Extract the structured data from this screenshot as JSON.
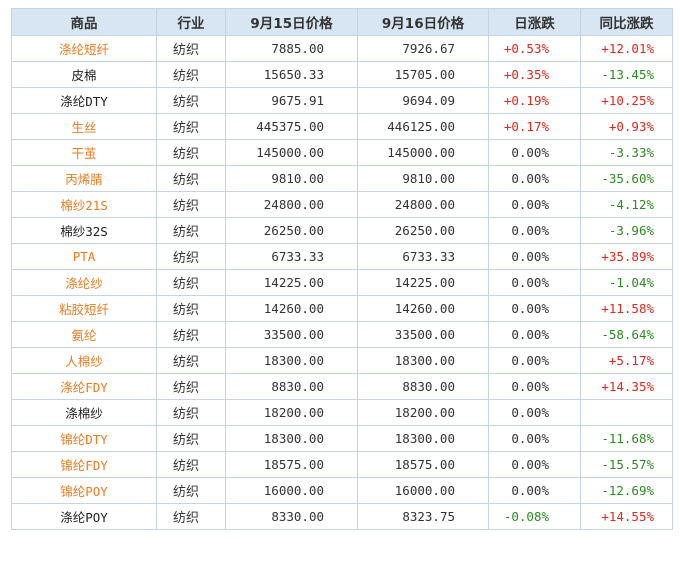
{
  "header": {
    "product": "商品",
    "industry": "行业",
    "price_sep15": "9月15日价格",
    "price_sep16": "9月16日价格",
    "daily_change": "日涨跌",
    "yoy_change": "同比涨跌"
  },
  "colors": {
    "header_bg": "#d8e6f3",
    "link_orange": "#ee7b22",
    "rise_red": "#e0281e",
    "fall_green": "#2d8a22"
  },
  "rows": [
    {
      "name": "涤纶短纤",
      "name_color": "orange",
      "industry": "纺织",
      "p15": "7885.00",
      "p16": "7926.67",
      "day": "+0.53%",
      "yoy": "+12.01%"
    },
    {
      "name": "皮棉",
      "name_color": "black",
      "industry": "纺织",
      "p15": "15650.33",
      "p16": "15705.00",
      "day": "+0.35%",
      "yoy": "-13.45%"
    },
    {
      "name": "涤纶DTY",
      "name_color": "black",
      "industry": "纺织",
      "p15": "9675.91",
      "p16": "9694.09",
      "day": "+0.19%",
      "yoy": "+10.25%"
    },
    {
      "name": "生丝",
      "name_color": "orange",
      "industry": "纺织",
      "p15": "445375.00",
      "p16": "446125.00",
      "day": "+0.17%",
      "yoy": "+0.93%"
    },
    {
      "name": "干茧",
      "name_color": "orange",
      "industry": "纺织",
      "p15": "145000.00",
      "p16": "145000.00",
      "day": "0.00%",
      "yoy": "-3.33%"
    },
    {
      "name": "丙烯腈",
      "name_color": "orange",
      "industry": "纺织",
      "p15": "9810.00",
      "p16": "9810.00",
      "day": "0.00%",
      "yoy": "-35.60%"
    },
    {
      "name": "棉纱21S",
      "name_color": "orange",
      "industry": "纺织",
      "p15": "24800.00",
      "p16": "24800.00",
      "day": "0.00%",
      "yoy": "-4.12%"
    },
    {
      "name": "棉纱32S",
      "name_color": "black",
      "industry": "纺织",
      "p15": "26250.00",
      "p16": "26250.00",
      "day": "0.00%",
      "yoy": "-3.96%"
    },
    {
      "name": "PTA",
      "name_color": "orange",
      "industry": "纺织",
      "p15": "6733.33",
      "p16": "6733.33",
      "day": "0.00%",
      "yoy": "+35.89%"
    },
    {
      "name": "涤纶纱",
      "name_color": "orange",
      "industry": "纺织",
      "p15": "14225.00",
      "p16": "14225.00",
      "day": "0.00%",
      "yoy": "-1.04%"
    },
    {
      "name": "粘胶短纤",
      "name_color": "orange",
      "industry": "纺织",
      "p15": "14260.00",
      "p16": "14260.00",
      "day": "0.00%",
      "yoy": "+11.58%"
    },
    {
      "name": "氨纶",
      "name_color": "orange",
      "industry": "纺织",
      "p15": "33500.00",
      "p16": "33500.00",
      "day": "0.00%",
      "yoy": "-58.64%"
    },
    {
      "name": "人棉纱",
      "name_color": "orange",
      "industry": "纺织",
      "p15": "18300.00",
      "p16": "18300.00",
      "day": "0.00%",
      "yoy": "+5.17%"
    },
    {
      "name": "涤纶FDY",
      "name_color": "orange",
      "industry": "纺织",
      "p15": "8830.00",
      "p16": "8830.00",
      "day": "0.00%",
      "yoy": "+14.35%"
    },
    {
      "name": "涤棉纱",
      "name_color": "black",
      "industry": "纺织",
      "p15": "18200.00",
      "p16": "18200.00",
      "day": "0.00%",
      "yoy": ""
    },
    {
      "name": "锦纶DTY",
      "name_color": "orange",
      "industry": "纺织",
      "p15": "18300.00",
      "p16": "18300.00",
      "day": "0.00%",
      "yoy": "-11.68%"
    },
    {
      "name": "锦纶FDY",
      "name_color": "orange",
      "industry": "纺织",
      "p15": "18575.00",
      "p16": "18575.00",
      "day": "0.00%",
      "yoy": "-15.57%"
    },
    {
      "name": "锦纶POY",
      "name_color": "orange",
      "industry": "纺织",
      "p15": "16000.00",
      "p16": "16000.00",
      "day": "0.00%",
      "yoy": "-12.69%"
    },
    {
      "name": "涤纶POY",
      "name_color": "black",
      "industry": "纺织",
      "p15": "8330.00",
      "p16": "8323.75",
      "day": "-0.08%",
      "yoy": "+14.55%"
    }
  ]
}
